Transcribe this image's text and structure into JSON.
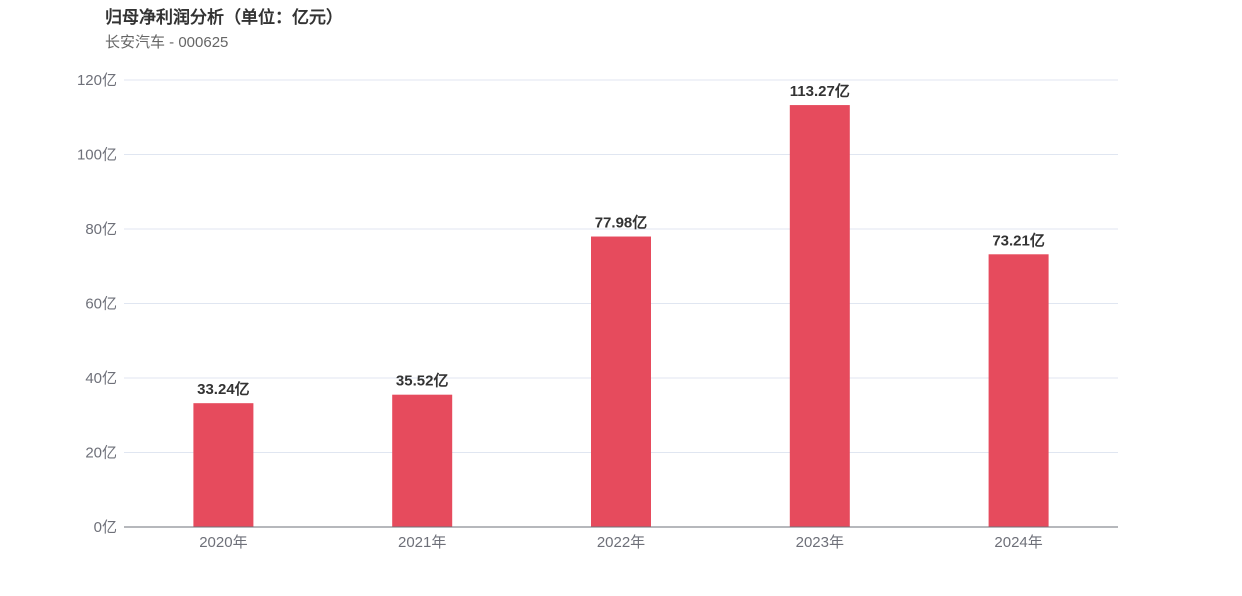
{
  "chart_data": {
    "type": "bar",
    "title": "归母净利润分析（单位：亿元）",
    "subtitle": "长安汽车 - 000625",
    "categories": [
      "2020年",
      "2021年",
      "2022年",
      "2023年",
      "2024年"
    ],
    "values": [
      33.24,
      35.52,
      77.98,
      113.27,
      73.21
    ],
    "data_labels": [
      "33.24亿",
      "35.52亿",
      "77.98亿",
      "113.27亿",
      "73.21亿"
    ],
    "y_ticks": [
      0,
      20,
      40,
      60,
      80,
      100,
      120
    ],
    "y_tick_labels": [
      "0亿",
      "20亿",
      "40亿",
      "60亿",
      "80亿",
      "100亿",
      "120亿"
    ],
    "ylim": [
      0,
      120
    ],
    "grid": true,
    "legend": "none",
    "bar_color": "#e64b5d",
    "grid_color": "#e0e6f1",
    "axis_color": "#6e7079"
  }
}
